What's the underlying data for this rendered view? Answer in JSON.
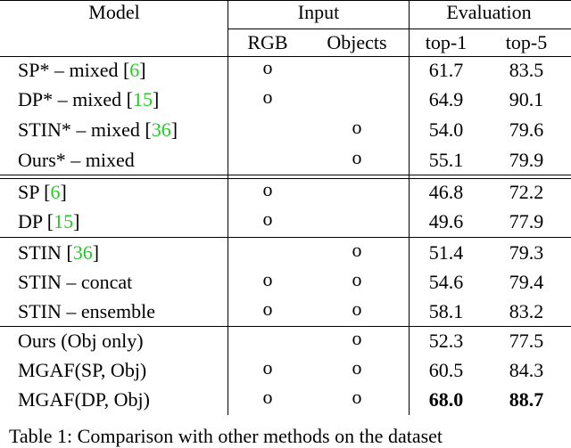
{
  "table": {
    "header": {
      "model": "Model",
      "input": "Input",
      "evaluation": "Evaluation",
      "rgb": "RGB",
      "objects": "Objects",
      "top1": "top-1",
      "top5": "top-5"
    },
    "rows": [
      {
        "model": [
          "SP* – mixed [",
          "6",
          "]"
        ],
        "rgb": "o",
        "objects": null,
        "top1": "61.7",
        "top5": "83.5"
      },
      {
        "model": [
          "DP* – mixed [",
          "15",
          "]"
        ],
        "rgb": "o",
        "objects": null,
        "top1": "64.9",
        "top5": "90.1"
      },
      {
        "model": [
          "STIN* – mixed [",
          "36",
          "]"
        ],
        "rgb": null,
        "objects": "o",
        "top1": "54.0",
        "top5": "79.6"
      },
      {
        "model": [
          "Ours* – mixed"
        ],
        "rgb": null,
        "objects": "o",
        "top1": "55.1",
        "top5": "79.9"
      },
      {
        "model": [
          "SP [",
          "6",
          "]"
        ],
        "rgb": "o",
        "objects": null,
        "top1": "46.8",
        "top5": "72.2"
      },
      {
        "model": [
          "DP [",
          "15",
          "]"
        ],
        "rgb": "o",
        "objects": null,
        "top1": "49.6",
        "top5": "77.9"
      },
      {
        "model": [
          "STIN [",
          "36",
          "]"
        ],
        "rgb": null,
        "objects": "o",
        "top1": "51.4",
        "top5": "79.3"
      },
      {
        "model": [
          "STIN – concat"
        ],
        "rgb": "o",
        "objects": "o",
        "top1": "54.6",
        "top5": "79.4"
      },
      {
        "model": [
          "STIN – ensemble"
        ],
        "rgb": "o",
        "objects": "o",
        "top1": "58.1",
        "top5": "83.2"
      },
      {
        "model": [
          "Ours (Obj only)"
        ],
        "rgb": null,
        "objects": "o",
        "top1": "52.3",
        "top5": "77.5"
      },
      {
        "model": [
          "MGAF(SP, Obj)"
        ],
        "rgb": "o",
        "objects": "o",
        "top1": "60.5",
        "top5": "84.3"
      },
      {
        "model": [
          "MGAF(DP, Obj)"
        ],
        "rgb": "o",
        "objects": "o",
        "top1": "68.0",
        "top5": "88.7",
        "best": true
      }
    ],
    "caption": "Table 1: Comparison with other methods on the dataset"
  }
}
